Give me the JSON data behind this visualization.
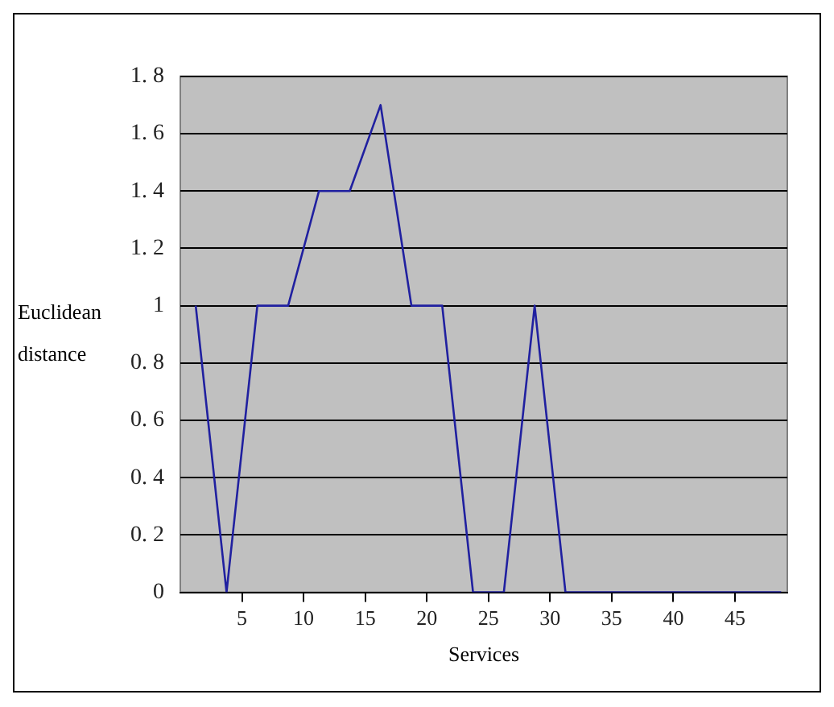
{
  "chart_data": {
    "type": "line",
    "xlabel": "Services",
    "ylabel": "Euclidean distance",
    "x": [
      1.25,
      3.75,
      6.25,
      8.75,
      11.25,
      13.75,
      16.25,
      18.75,
      21.25,
      23.75,
      26.25,
      28.75,
      31.25,
      33.75,
      36.25,
      38.75,
      41.25,
      43.75,
      46.25,
      48.75
    ],
    "series": [
      {
        "color": "#2020a0",
        "values": [
          1,
          0,
          1,
          1,
          1.4,
          1.4,
          1.7,
          1,
          1,
          0,
          0,
          1,
          0,
          0,
          0,
          0,
          0,
          0,
          0,
          0
        ]
      }
    ],
    "xlim": [
      0,
      49.25
    ],
    "xticks": [
      5,
      10,
      15,
      20,
      25,
      30,
      35,
      40,
      45
    ],
    "ylim": [
      0,
      1.8
    ],
    "yticks": [
      {
        "value": 0,
        "label": "0"
      },
      {
        "value": 0.2,
        "label": "0. 2"
      },
      {
        "value": 0.4,
        "label": "0. 4"
      },
      {
        "value": 0.6,
        "label": "0. 6"
      },
      {
        "value": 0.8,
        "label": "0. 8"
      },
      {
        "value": 1,
        "label": "1"
      },
      {
        "value": 1.2,
        "label": "1. 2"
      },
      {
        "value": 1.4,
        "label": "1. 4"
      },
      {
        "value": 1.6,
        "label": "1. 6"
      },
      {
        "value": 1.8,
        "label": "1. 8"
      }
    ],
    "grid": "y",
    "legend": false,
    "marker": "none",
    "line_style": "solid"
  }
}
